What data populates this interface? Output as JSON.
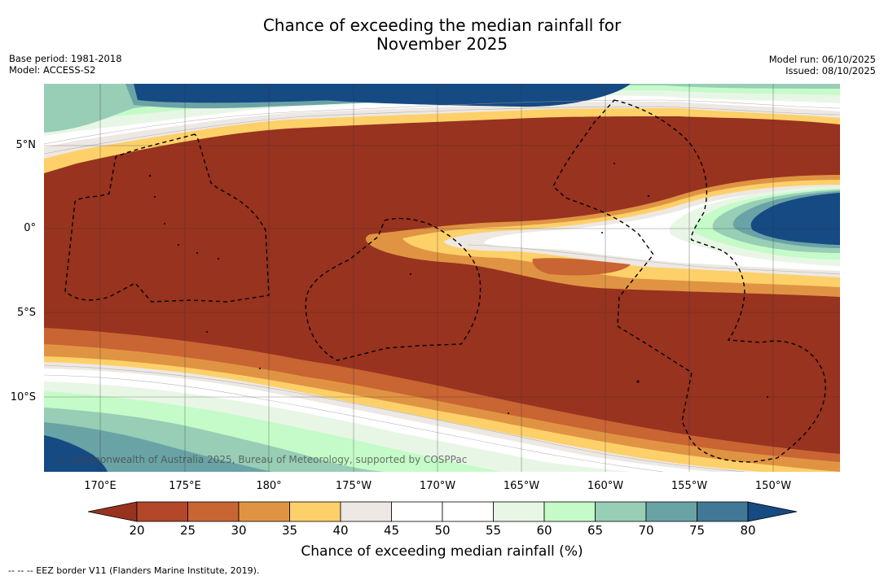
{
  "header": {
    "title_line1": "Chance of exceeding the median rainfall for",
    "title_line2": "November 2025",
    "base_period": "Base period: 1981-2018",
    "model": "Model: ACCESS-S2",
    "model_run": "Model run: 06/10/2025",
    "issued": "Issued: 08/10/2025"
  },
  "map": {
    "lat_labels": [
      "5°N",
      "0°",
      "5°S",
      "10°S"
    ],
    "lon_labels": [
      "170°E",
      "175°E",
      "180°",
      "175°W",
      "170°W",
      "165°W",
      "160°W",
      "155°W",
      "150°W"
    ],
    "copyright": "© Commonwealth of Australia 2025, Bureau of Meteorology, supported by COSPPac",
    "ocean_color": "#98331f"
  },
  "colorbar": {
    "ticks": [
      "20",
      "25",
      "30",
      "35",
      "40",
      "45",
      "50",
      "55",
      "60",
      "65",
      "70",
      "75",
      "80"
    ],
    "colors": [
      "#98331f",
      "#b2472a",
      "#c96433",
      "#e09443",
      "#fdd069",
      "#ede8e3",
      "#ffffff",
      "#ffffff",
      "#e8f6e6",
      "#c5fbc8",
      "#98cdb6",
      "#6aa3a5",
      "#417895",
      "#164a83"
    ],
    "label": "Chance of exceeding median rainfall (%)"
  },
  "footnote": "--  --  -- EEZ border V11 (Flanders Marine Institute, 2019)."
}
